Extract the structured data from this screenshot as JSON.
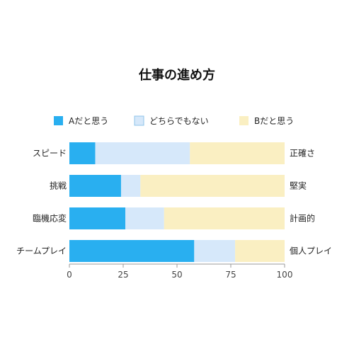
{
  "chart_data": {
    "type": "bar",
    "orientation": "horizontal",
    "stacked": true,
    "title": "仕事の進め方",
    "categories": [
      "スピード",
      "挑戦",
      "臨機応変",
      "チームプレイ"
    ],
    "right_labels": [
      "正確さ",
      "堅実",
      "計画的",
      "個人プレイ"
    ],
    "series": [
      {
        "name": "Aだと思う",
        "values": [
          12,
          24,
          26,
          58
        ],
        "color": "#29aff0"
      },
      {
        "name": "どちらでもない",
        "values": [
          44,
          9,
          18,
          19
        ],
        "color": "#d6e8fa"
      },
      {
        "name": "Bだと思う",
        "values": [
          44,
          67,
          56,
          23
        ],
        "color": "#faefc2"
      }
    ],
    "xlim": [
      0,
      100
    ],
    "xticks": [
      0,
      25,
      50,
      75,
      100
    ],
    "legend_position": "top",
    "grid": false
  }
}
